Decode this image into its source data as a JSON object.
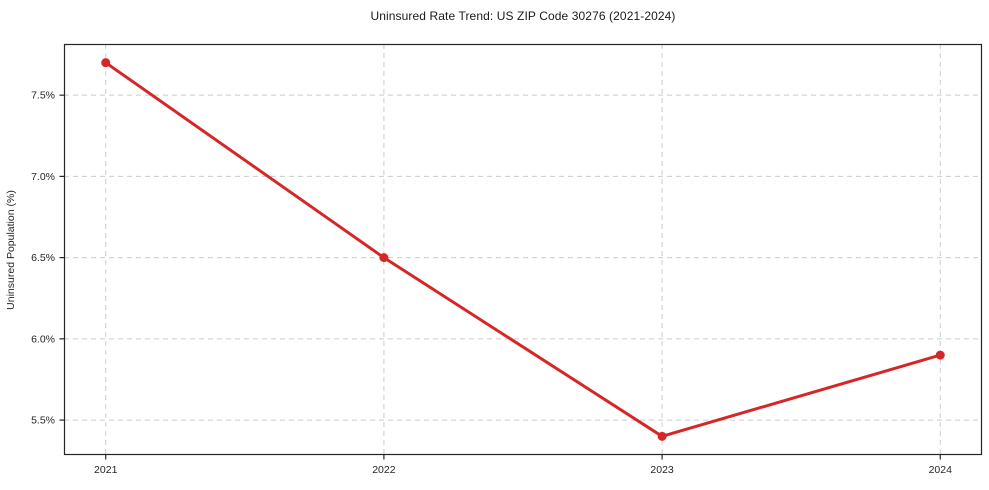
{
  "page": {
    "background": "#ffffff"
  },
  "chart_data": {
    "type": "line",
    "title": "Uninsured Rate Trend: US ZIP Code 30276 (2021-2024)",
    "xlabel": "",
    "ylabel": "Uninsured Population (%)",
    "x": [
      2021,
      2022,
      2023,
      2024
    ],
    "x_tick_labels": [
      "2021",
      "2022",
      "2023",
      "2024"
    ],
    "series": [
      {
        "name": "Uninsured Rate",
        "values": [
          7.7,
          6.5,
          5.4,
          5.9
        ],
        "color": "#d62728",
        "marker": "circle",
        "line_width": 3
      }
    ],
    "y_ticks": [
      5.5,
      6.0,
      6.5,
      7.0,
      7.5
    ],
    "y_tick_labels": [
      "5.5%",
      "6.0%",
      "6.5%",
      "7.0%",
      "7.5%"
    ],
    "xlim": [
      2020.85,
      2024.15
    ],
    "ylim": [
      5.285,
      7.815
    ],
    "grid": true,
    "grid_line_style": "dashed",
    "grid_color": "#cccccc",
    "axis_color": "#262626",
    "tick_label_color": "#262626",
    "legend_position": "none"
  }
}
